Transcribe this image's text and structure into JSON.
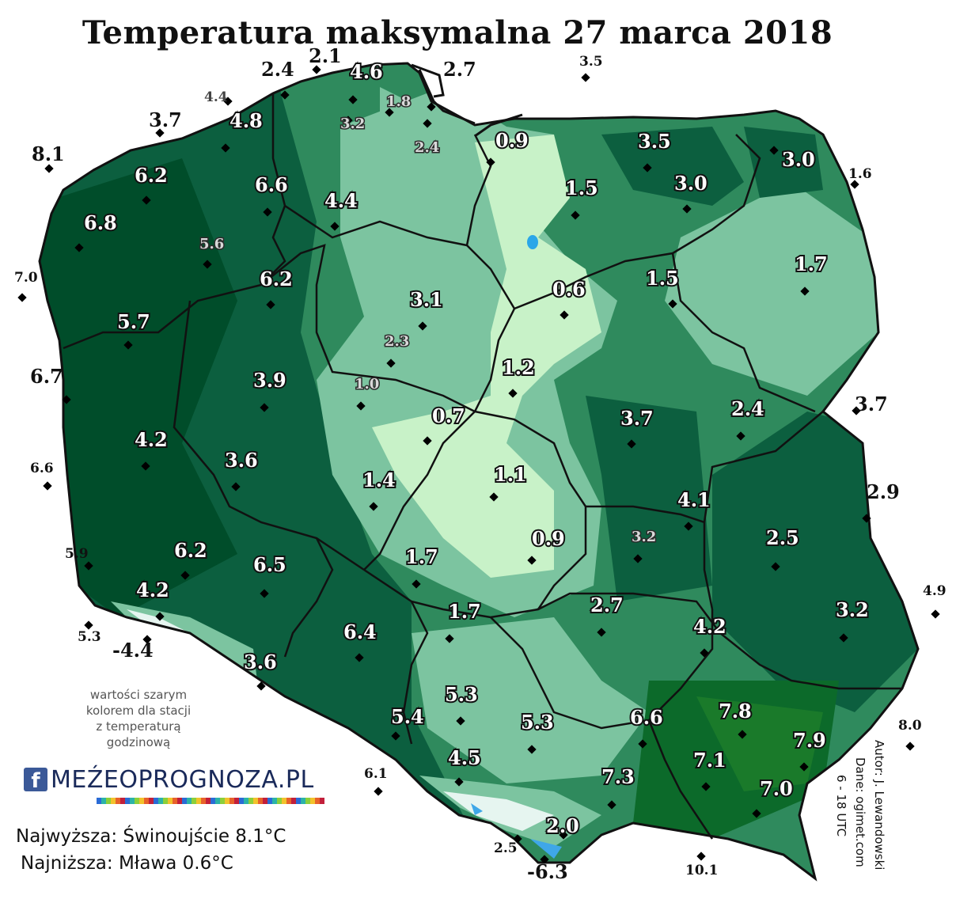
{
  "title": "Temperatura maksymalna 27 marca 2018",
  "note": [
    "wartości szarym",
    "kolorem dla stacji",
    "z temperaturą",
    "godzinową"
  ],
  "logo": {
    "text": "MEŹEOPROGNOZA.PL",
    "fb": "f"
  },
  "summary": {
    "highest": "Najwyższa: Świnoujście 8.1°C",
    "lowest": "Najniższa: Mława 0.6°C"
  },
  "credits": {
    "author": "Autor: J. Lewandowski",
    "data_source": "Dane: ogimet.com",
    "period": "6 - 18 UTC"
  },
  "colors": {
    "darkest": "#004d2a",
    "dark": "#0c5f3f",
    "mid": "#2f8a5d",
    "light": "#7cc4a0",
    "lightest": "#c8f2c8",
    "mountain_white": "#e6f5f0",
    "mountain_blue": "#3fa7e8"
  },
  "stations": [
    {
      "v": "8.1",
      "s": "outside"
    },
    {
      "v": "3.7",
      "s": "outside"
    },
    {
      "v": "4.4",
      "s": "outside-gray"
    },
    {
      "v": "2.4",
      "s": "outside"
    },
    {
      "v": "2.1",
      "s": "outside"
    },
    {
      "v": "2.7",
      "s": "outside"
    },
    {
      "v": "3.5",
      "s": "outside-small"
    },
    {
      "v": "1.6",
      "s": "outside-small"
    },
    {
      "v": "7.0",
      "s": "outside-small"
    },
    {
      "v": "6.7",
      "s": "outside"
    },
    {
      "v": "6.6",
      "s": "outside-small"
    },
    {
      "v": "5.9",
      "s": "outside-small"
    },
    {
      "v": "5.3",
      "s": "outside-small"
    },
    {
      "v": "-4.4",
      "s": "outside"
    },
    {
      "v": "3.7",
      "s": "outside"
    },
    {
      "v": "2.9",
      "s": "outside"
    },
    {
      "v": "4.9",
      "s": "outside-small"
    },
    {
      "v": "8.0",
      "s": "outside-small"
    },
    {
      "v": "6.1",
      "s": "outside-small"
    },
    {
      "v": "2.5",
      "s": "outside-small"
    },
    {
      "v": "-6.3",
      "s": "outside"
    },
    {
      "v": "10.1",
      "s": "outside-small"
    },
    {
      "v": "4.6",
      "s": "white"
    },
    {
      "v": "1.8",
      "s": "gray"
    },
    {
      "v": "3.2",
      "s": "gray"
    },
    {
      "v": "2.4",
      "s": "gray"
    },
    {
      "v": "4.8",
      "s": "white"
    },
    {
      "v": "6.2",
      "s": "white"
    },
    {
      "v": "6.6",
      "s": "white"
    },
    {
      "v": "4.4",
      "s": "white"
    },
    {
      "v": "6.8",
      "s": "white"
    },
    {
      "v": "5.6",
      "s": "gray"
    },
    {
      "v": "6.2",
      "s": "white"
    },
    {
      "v": "0.9",
      "s": "white"
    },
    {
      "v": "3.5",
      "s": "white"
    },
    {
      "v": "3.0",
      "s": "white"
    },
    {
      "v": "1.5",
      "s": "white"
    },
    {
      "v": "3.0",
      "s": "white"
    },
    {
      "v": "1.7",
      "s": "white"
    },
    {
      "v": "1.5",
      "s": "white"
    },
    {
      "v": "0.6",
      "s": "white"
    },
    {
      "v": "3.1",
      "s": "white"
    },
    {
      "v": "2.3",
      "s": "gray"
    },
    {
      "v": "5.7",
      "s": "white"
    },
    {
      "v": "1.2",
      "s": "white"
    },
    {
      "v": "3.9",
      "s": "white"
    },
    {
      "v": "1.0",
      "s": "gray"
    },
    {
      "v": "0.7",
      "s": "white"
    },
    {
      "v": "2.4",
      "s": "white"
    },
    {
      "v": "3.7",
      "s": "white"
    },
    {
      "v": "4.2",
      "s": "white"
    },
    {
      "v": "3.6",
      "s": "white"
    },
    {
      "v": "1.4",
      "s": "white"
    },
    {
      "v": "1.1",
      "s": "white"
    },
    {
      "v": "4.1",
      "s": "white"
    },
    {
      "v": "3.2",
      "s": "gray"
    },
    {
      "v": "0.9",
      "s": "white"
    },
    {
      "v": "2.5",
      "s": "white"
    },
    {
      "v": "6.2",
      "s": "white"
    },
    {
      "v": "6.5",
      "s": "white"
    },
    {
      "v": "1.7",
      "s": "white"
    },
    {
      "v": "4.2",
      "s": "white"
    },
    {
      "v": "1.7",
      "s": "white"
    },
    {
      "v": "2.7",
      "s": "white"
    },
    {
      "v": "3.2",
      "s": "white"
    },
    {
      "v": "4.2",
      "s": "white"
    },
    {
      "v": "6.4",
      "s": "white"
    },
    {
      "v": "3.6",
      "s": "white"
    },
    {
      "v": "5.3",
      "s": "white"
    },
    {
      "v": "5.4",
      "s": "white"
    },
    {
      "v": "5.3",
      "s": "white"
    },
    {
      "v": "6.6",
      "s": "white"
    },
    {
      "v": "7.8",
      "s": "white"
    },
    {
      "v": "7.9",
      "s": "white"
    },
    {
      "v": "4.5",
      "s": "white"
    },
    {
      "v": "7.3",
      "s": "white"
    },
    {
      "v": "7.1",
      "s": "white"
    },
    {
      "v": "7.0",
      "s": "white"
    },
    {
      "v": "2.0",
      "s": "white"
    }
  ]
}
